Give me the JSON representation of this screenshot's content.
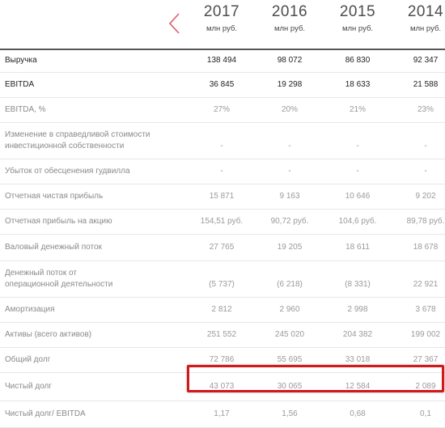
{
  "header": {
    "years": [
      {
        "year": "2017",
        "unit": "млн руб."
      },
      {
        "year": "2016",
        "unit": "млн руб."
      },
      {
        "year": "2015",
        "unit": "млн руб."
      },
      {
        "year": "2014",
        "unit": "млн руб."
      }
    ],
    "accent_color": "#e05a6a"
  },
  "rows": [
    {
      "label": [
        "Выручка"
      ],
      "values": [
        "138 494",
        "98 072",
        "86 830",
        "92 347"
      ],
      "strong": true
    },
    {
      "label": [
        "EBITDA"
      ],
      "values": [
        "36 845",
        "19 298",
        "18 633",
        "21 588"
      ],
      "strong": true
    },
    {
      "label": [
        "EBITDA, %"
      ],
      "values": [
        "27%",
        "20%",
        "21%",
        "23%"
      ],
      "strong": false
    },
    {
      "label": [
        "Изменение в справедливой стоимости",
        "инвестиционной собственности"
      ],
      "values": [
        "-",
        "-",
        "-",
        "-"
      ],
      "strong": false
    },
    {
      "label": [
        "Убыток от обесценения гудвилла"
      ],
      "values": [
        "-",
        "-",
        "-",
        "-"
      ],
      "strong": false
    },
    {
      "label": [
        "Отчетная чистая прибыль"
      ],
      "values": [
        "15 871",
        "9 163",
        "10 646",
        "9 202"
      ],
      "strong": false
    },
    {
      "label": [
        "Отчетная прибыль на акцию"
      ],
      "values": [
        "154,51 руб.",
        "90,72 руб.",
        "104,6 руб.",
        "89,78 руб."
      ],
      "strong": false
    },
    {
      "label": [
        "Валовый денежный поток"
      ],
      "values": [
        "27 765",
        "19 205",
        "18 611",
        "18 678"
      ],
      "strong": false
    },
    {
      "label": [
        "Денежный поток от",
        "операционной деятельности"
      ],
      "values": [
        "(5 737)",
        "(6 218)",
        "(8 331)",
        "22 921"
      ],
      "strong": false
    },
    {
      "label": [
        "Амортизация"
      ],
      "values": [
        "2 812",
        "2 960",
        "2 998",
        "3 678"
      ],
      "strong": false
    },
    {
      "label": [
        "Активы (всего активов)"
      ],
      "values": [
        "251 552",
        "245 020",
        "204 382",
        "199 002"
      ],
      "strong": false
    },
    {
      "label": [
        "Общий долг"
      ],
      "values": [
        "72 786",
        "55 695",
        "33 018",
        "27 367"
      ],
      "strong": false
    },
    {
      "label": [
        "Чистый долг"
      ],
      "values": [
        "43 073",
        "30 065",
        "12 584",
        "2 089"
      ],
      "strong": false,
      "highlighted": true
    },
    {
      "label": [
        "Чистый долг/ EBITDA"
      ],
      "values": [
        "1,17",
        "1,56",
        "0,68",
        "0,1"
      ],
      "strong": false
    }
  ],
  "highlight_color": "#d11a1a"
}
